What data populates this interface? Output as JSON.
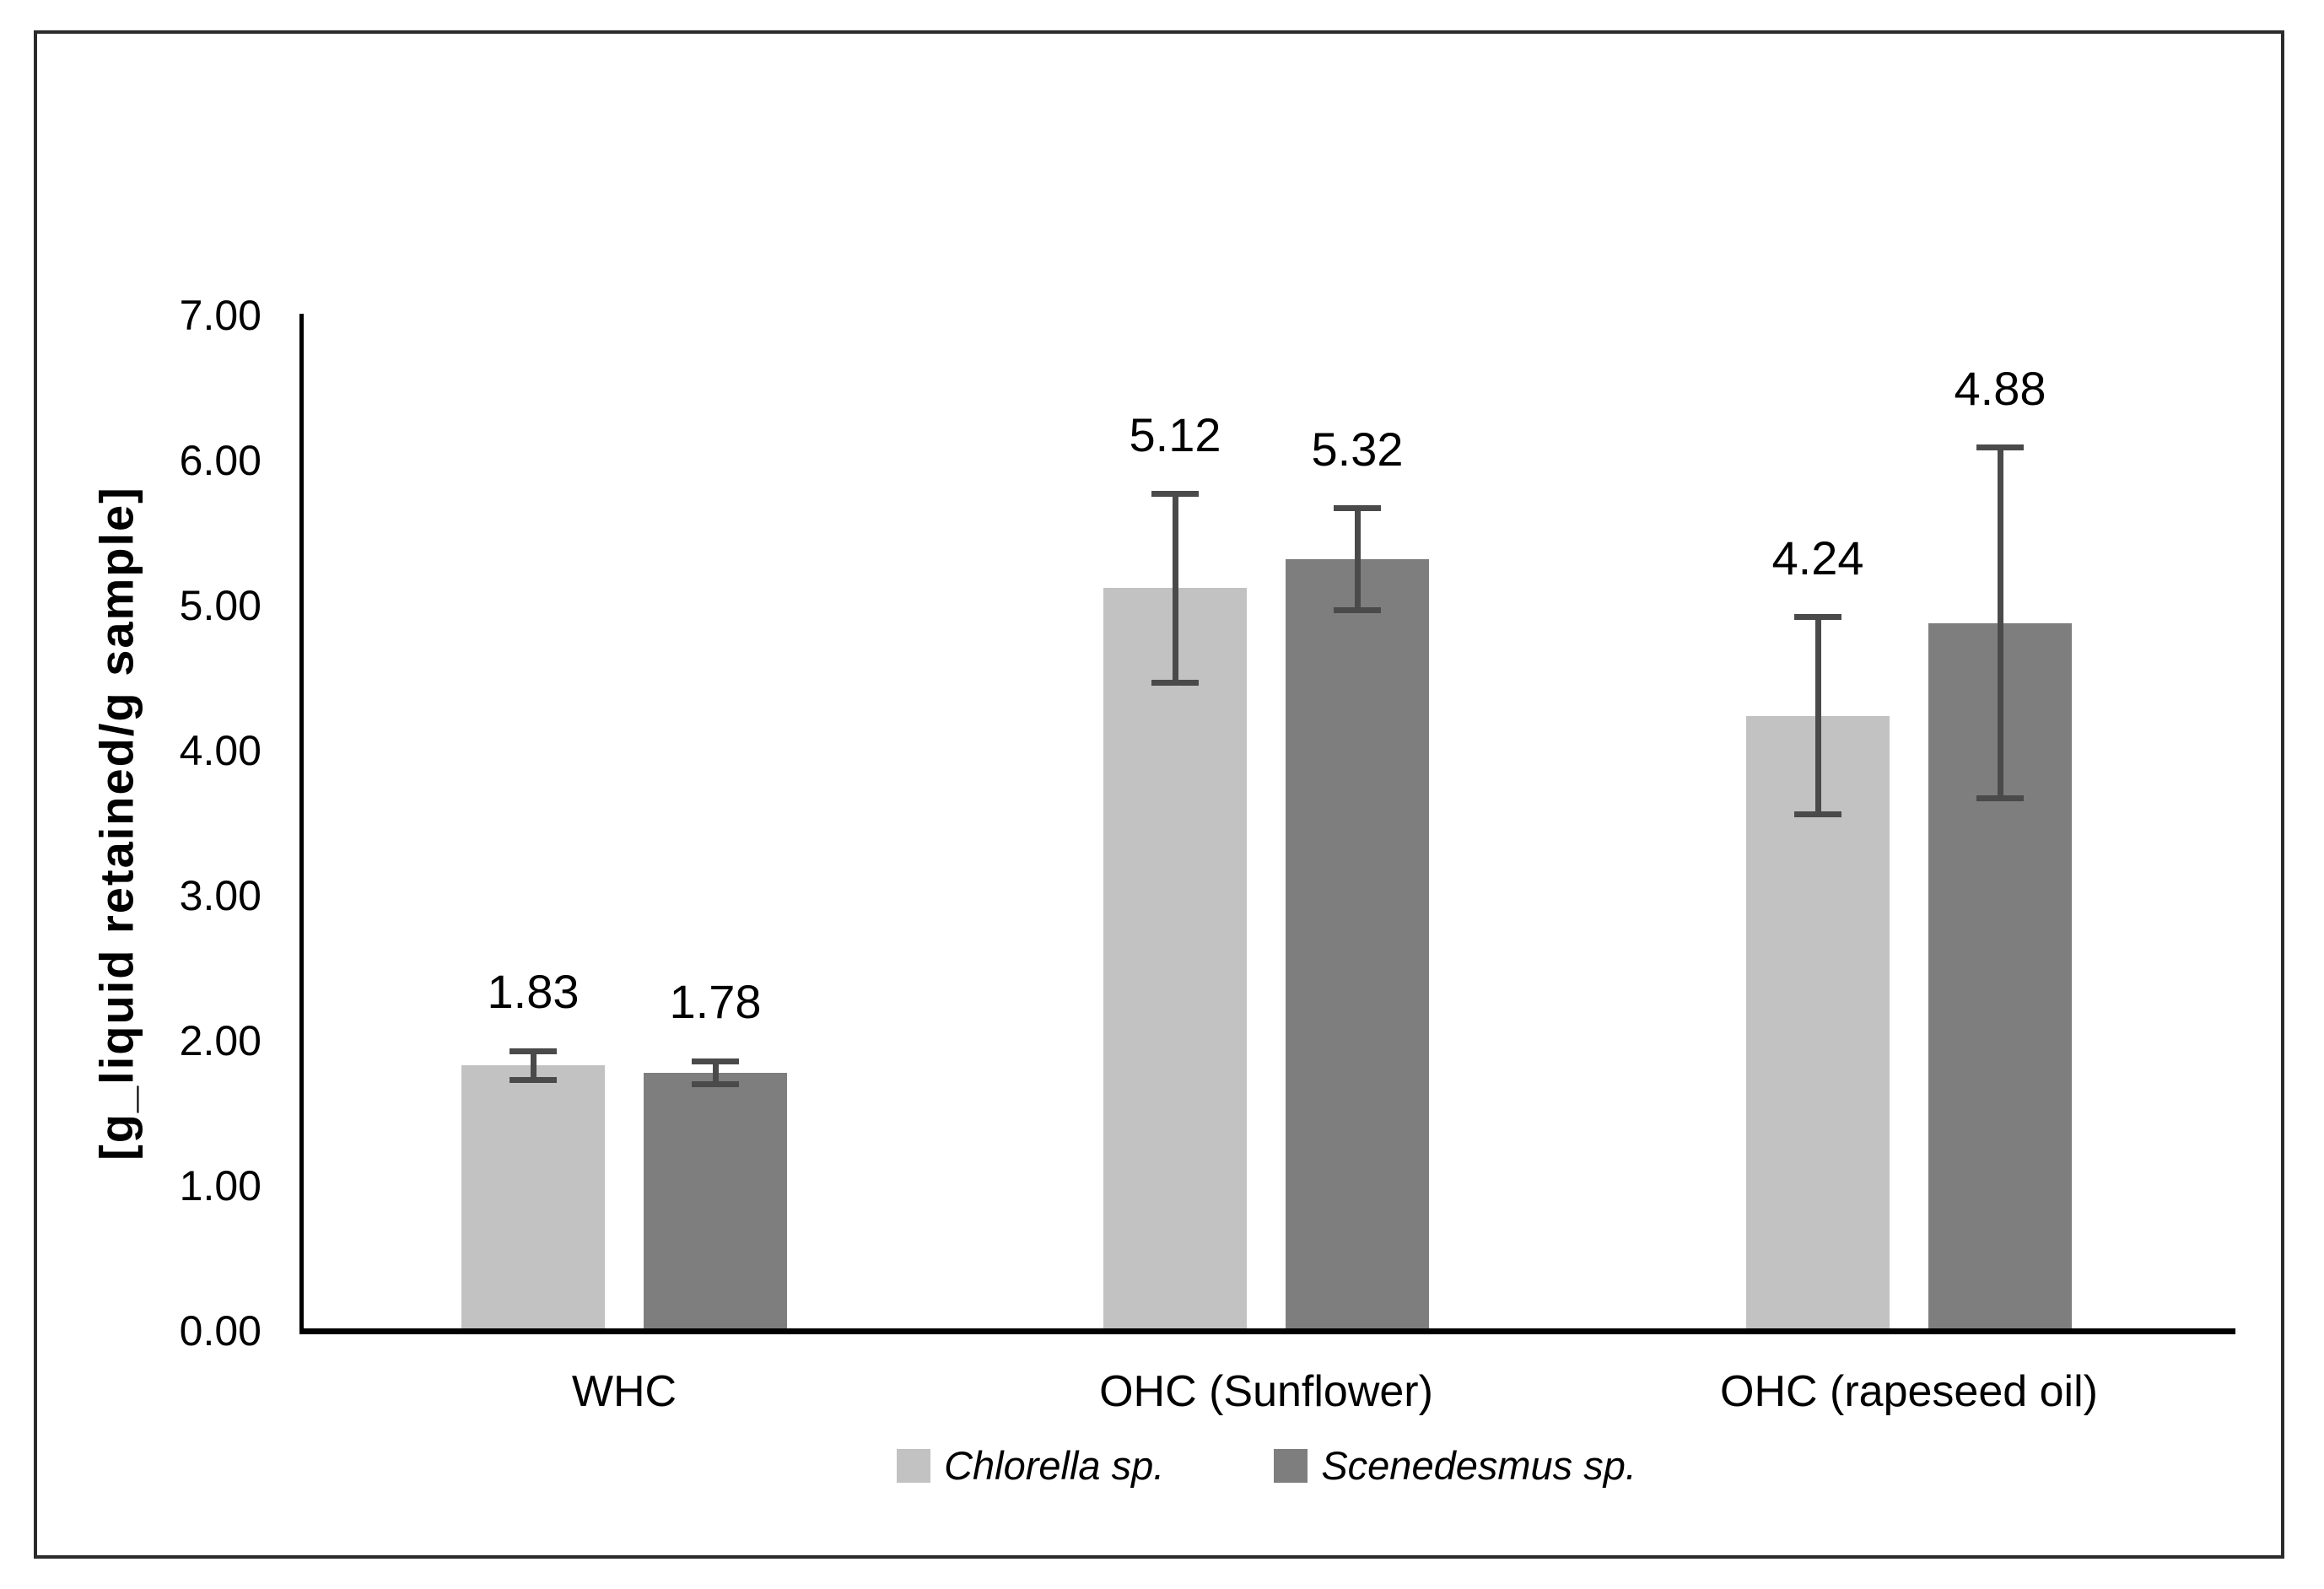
{
  "chart_data": {
    "type": "bar",
    "categories": [
      "WHC",
      "OHC (Sunflower)",
      "OHC (rapeseed oil)"
    ],
    "series": [
      {
        "name": "Chlorella sp.",
        "color": "#c2c2c2",
        "values": [
          1.83,
          5.12,
          4.24
        ],
        "value_labels": [
          "1.83",
          "5.12",
          "4.24"
        ],
        "errors": [
          0.1,
          0.65,
          0.68
        ]
      },
      {
        "name": "Scenedesmus sp.",
        "color": "#7e7e7e",
        "values": [
          1.78,
          5.32,
          4.88
        ],
        "value_labels": [
          "1.78",
          "5.32",
          "4.88"
        ],
        "errors": [
          0.08,
          0.35,
          1.21
        ]
      }
    ],
    "ylabel": "[g_liquid retained/g sample]",
    "ylim": [
      0,
      7
    ],
    "ytick_labels": [
      "0.00",
      "1.00",
      "2.00",
      "3.00",
      "4.00",
      "5.00",
      "6.00",
      "7.00"
    ],
    "grid": false,
    "legend_position": "bottom",
    "colors": {
      "axis": "#000000",
      "error_bar": "#4a4a4a",
      "text": "#000000",
      "figure_border": "#2b2b2b",
      "background": "#ffffff"
    }
  }
}
